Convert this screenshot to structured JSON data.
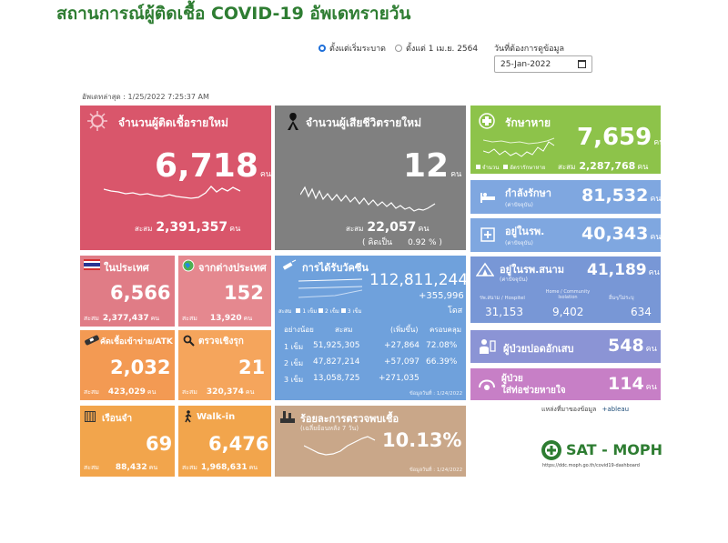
{
  "header": {
    "title": "สถานการณ์ผู้ติดเชื้อ COVID-19 อัพเดทรายวัน",
    "radio_since_start": "ตั้งแต่เริ่มระบาด",
    "radio_since_april": "ตั้งแต่ 1 เม.ย. 2564",
    "date_label": "วันที่ต้องการดูข้อมูล",
    "date_value": "25-Jan-2022",
    "updated": "อัพเดทล่าสุด : 1/25/2022 7:25:37 AM"
  },
  "new_cases": {
    "label": "จำนวนผู้ติดเชื้อรายใหม่",
    "value": "6,718",
    "unit": "คน",
    "cum_label": "สะสม",
    "cum_value": "2,391,357",
    "cum_unit": "คน"
  },
  "new_deaths": {
    "label": "จำนวนผู้เสียชีวิตรายใหม่",
    "value": "12",
    "unit": "คน",
    "cum_label": "สะสม",
    "cum_value": "22,057",
    "cum_unit": "คน",
    "pct_label": "( คิดเป็น",
    "pct_value": "0.92 % )"
  },
  "recovered": {
    "label": "รักษาหาย",
    "value": "7,659",
    "unit": "คน",
    "legend1": "จำนวน",
    "legend2": "อัตรารักษาหาย",
    "cum_label": "สะสม",
    "cum_value": "2,287,768",
    "cum_unit": "คน"
  },
  "treating": {
    "label": "กำลังรักษา",
    "sub": "(ค่าปัจจุบัน)",
    "value": "81,532",
    "unit": "คน"
  },
  "hospital": {
    "label": "อยู่ในรพ.",
    "sub": "(ค่าปัจจุบัน)",
    "value": "40,343",
    "unit": "คน"
  },
  "field_hospital": {
    "label": "อยู่ในรพ.สนาม",
    "sub": "(ค่าปัจจุบัน)",
    "value": "41,189",
    "unit": "คน",
    "col1_label": "รพ.สนาม / Hospitel",
    "col1_value": "31,153",
    "col2_label": "Home / Community Isolation",
    "col2_value": "9,402",
    "col3_label": "อื่นๆ/ไม่ระบุ",
    "col3_value": "634"
  },
  "pneumonia": {
    "label": "ผู้ป่วยปอดอักเสบ",
    "value": "548",
    "unit": "คน"
  },
  "ventilator": {
    "label1": "ผู้ป่วย",
    "label2": "ใส่ท่อช่วยหายใจ",
    "value": "114",
    "unit": "คน"
  },
  "domestic": {
    "label": "ในประเทศ",
    "value": "6,566",
    "cum_label": "สะสม",
    "cum_value": "2,377,437",
    "cum_unit": "คน"
  },
  "imported": {
    "label": "จากต่างประเทศ",
    "value": "152",
    "cum_label": "สะสม",
    "cum_value": "13,920",
    "cum_unit": "คน"
  },
  "atk": {
    "label": "คัดเชื้อเข้าข่าย/ATK",
    "value": "2,032",
    "cum_label": "สะสม",
    "cum_value": "423,029",
    "cum_unit": "คน"
  },
  "active_search": {
    "label": "ตรวจเชิงรุก",
    "value": "21",
    "cum_label": "สะสม",
    "cum_value": "320,374",
    "cum_unit": "คน"
  },
  "prison": {
    "label": "เรือนจำ",
    "value": "69",
    "cum_label": "สะสม",
    "cum_value": "88,432",
    "cum_unit": "คน"
  },
  "walkin": {
    "label": "Walk-in",
    "value": "6,476",
    "cum_label": "สะสม",
    "cum_value": "1,968,631",
    "cum_unit": "คน"
  },
  "vaccine": {
    "label": "การได้รับวัคซีน",
    "total": "112,811,244",
    "delta": "+355,996",
    "unit": "โดส",
    "legend_prefix": "สะสม",
    "legend1": "1 เข็ม",
    "legend2": "2 เข็ม",
    "legend3": "3 เข็ม",
    "headers": [
      "อย่างน้อย",
      "สะสม",
      "(เพิ่มขึ้น)",
      "ครอบคลุม"
    ],
    "rows": [
      [
        "1 เข็ม",
        "51,925,305",
        "+27,864",
        "72.08%"
      ],
      [
        "2 เข็ม",
        "47,827,214",
        "+57,097",
        "66.39%"
      ],
      [
        "3 เข็ม",
        "13,058,725",
        "+271,035",
        ""
      ]
    ],
    "date_note": "ข้อมูลวันที่ : 1/24/2022"
  },
  "positivity": {
    "label": "ร้อยละการตรวจพบเชื้อ",
    "sub": "(เฉลี่ยย้อนหลัง 7 วัน)",
    "value": "10.13%",
    "date_note": "ข้อมูลวันที่ : 1/24/2022"
  },
  "source": {
    "label": "แหล่งที่มาของข้อมูล",
    "tableau": "+ableau",
    "org": "SAT - MOPH",
    "url": "https://ddc.moph.go.th/covid19-dashboard"
  },
  "colors": {
    "title": "#2e7d32",
    "new_cases": "#d9566b",
    "deaths": "#808080",
    "recovered": "#8dc34a",
    "vaccine": "#6fa1dc",
    "positivity": "#c9a789"
  }
}
